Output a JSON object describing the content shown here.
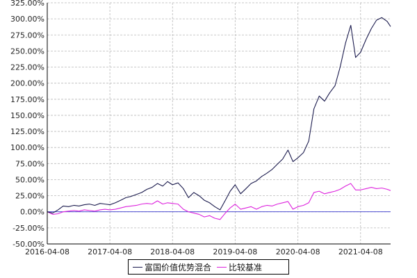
{
  "chart_data": {
    "type": "line",
    "title": "",
    "xlabel": "",
    "ylabel": "",
    "x_ticks": [
      "2016-04-08",
      "2017-04-08",
      "2018-04-08",
      "2019-04-08",
      "2020-04-08",
      "2021-04-08"
    ],
    "y_ticks": [
      "-50.00%",
      "-25.00%",
      "0.00%",
      "25.00%",
      "50.00%",
      "75.00%",
      "100.00%",
      "125.00%",
      "150.00%",
      "175.00%",
      "200.00%",
      "225.00%",
      "250.00%",
      "275.00%",
      "300.00%",
      "325.00%"
    ],
    "ylim": [
      -50,
      325
    ],
    "xlim": [
      "2016-04-08",
      "2021-09-30"
    ],
    "grid": true,
    "legend_position": "bottom-center",
    "zero_line_color": "#3333cc",
    "series": [
      {
        "name": "富国价值优势混合",
        "color": "#1a1a4d",
        "points": [
          [
            "2016-04-08",
            0
          ],
          [
            "2016-05-10",
            -2
          ],
          [
            "2016-06-10",
            3
          ],
          [
            "2016-07-10",
            9
          ],
          [
            "2016-08-10",
            8
          ],
          [
            "2016-09-10",
            10
          ],
          [
            "2016-10-10",
            9
          ],
          [
            "2016-11-10",
            11
          ],
          [
            "2016-12-10",
            12
          ],
          [
            "2017-01-10",
            10
          ],
          [
            "2017-02-10",
            13
          ],
          [
            "2017-03-10",
            12
          ],
          [
            "2017-04-08",
            11
          ],
          [
            "2017-05-10",
            14
          ],
          [
            "2017-06-10",
            18
          ],
          [
            "2017-07-10",
            22
          ],
          [
            "2017-08-10",
            24
          ],
          [
            "2017-09-10",
            27
          ],
          [
            "2017-10-10",
            30
          ],
          [
            "2017-11-10",
            35
          ],
          [
            "2017-12-10",
            38
          ],
          [
            "2018-01-10",
            44
          ],
          [
            "2018-02-10",
            40
          ],
          [
            "2018-03-10",
            47
          ],
          [
            "2018-04-08",
            42
          ],
          [
            "2018-05-10",
            45
          ],
          [
            "2018-06-10",
            36
          ],
          [
            "2018-07-10",
            22
          ],
          [
            "2018-08-10",
            30
          ],
          [
            "2018-09-10",
            25
          ],
          [
            "2018-10-10",
            18
          ],
          [
            "2018-11-10",
            14
          ],
          [
            "2018-12-10",
            8
          ],
          [
            "2019-01-10",
            3
          ],
          [
            "2019-02-10",
            18
          ],
          [
            "2019-03-10",
            32
          ],
          [
            "2019-04-08",
            42
          ],
          [
            "2019-05-10",
            28
          ],
          [
            "2019-06-10",
            36
          ],
          [
            "2019-07-10",
            44
          ],
          [
            "2019-08-10",
            48
          ],
          [
            "2019-09-10",
            55
          ],
          [
            "2019-10-10",
            60
          ],
          [
            "2019-11-10",
            66
          ],
          [
            "2019-12-10",
            74
          ],
          [
            "2020-01-10",
            82
          ],
          [
            "2020-02-10",
            96
          ],
          [
            "2020-03-10",
            78
          ],
          [
            "2020-04-08",
            84
          ],
          [
            "2020-05-10",
            92
          ],
          [
            "2020-06-10",
            110
          ],
          [
            "2020-07-10",
            160
          ],
          [
            "2020-08-10",
            180
          ],
          [
            "2020-09-10",
            172
          ],
          [
            "2020-10-10",
            185
          ],
          [
            "2020-11-10",
            196
          ],
          [
            "2020-12-10",
            225
          ],
          [
            "2021-01-10",
            262
          ],
          [
            "2021-02-10",
            290
          ],
          [
            "2021-03-10",
            240
          ],
          [
            "2021-04-08",
            248
          ],
          [
            "2021-05-10",
            268
          ],
          [
            "2021-06-10",
            285
          ],
          [
            "2021-07-10",
            298
          ],
          [
            "2021-08-10",
            302
          ],
          [
            "2021-09-10",
            296
          ],
          [
            "2021-09-30",
            288
          ]
        ]
      },
      {
        "name": "比较基准",
        "color": "#dd22dd",
        "points": [
          [
            "2016-04-08",
            0
          ],
          [
            "2016-05-10",
            -4
          ],
          [
            "2016-06-10",
            -3
          ],
          [
            "2016-07-10",
            0
          ],
          [
            "2016-08-10",
            1
          ],
          [
            "2016-09-10",
            2
          ],
          [
            "2016-10-10",
            1
          ],
          [
            "2016-11-10",
            3
          ],
          [
            "2016-12-10",
            2
          ],
          [
            "2017-01-10",
            1
          ],
          [
            "2017-02-10",
            3
          ],
          [
            "2017-03-10",
            4
          ],
          [
            "2017-04-08",
            3
          ],
          [
            "2017-05-10",
            4
          ],
          [
            "2017-06-10",
            6
          ],
          [
            "2017-07-10",
            8
          ],
          [
            "2017-08-10",
            9
          ],
          [
            "2017-09-10",
            10
          ],
          [
            "2017-10-10",
            12
          ],
          [
            "2017-11-10",
            13
          ],
          [
            "2017-12-10",
            12
          ],
          [
            "2018-01-10",
            17
          ],
          [
            "2018-02-10",
            12
          ],
          [
            "2018-03-10",
            14
          ],
          [
            "2018-04-08",
            13
          ],
          [
            "2018-05-10",
            12
          ],
          [
            "2018-06-10",
            4
          ],
          [
            "2018-07-10",
            0
          ],
          [
            "2018-08-10",
            -2
          ],
          [
            "2018-09-10",
            -4
          ],
          [
            "2018-10-10",
            -8
          ],
          [
            "2018-11-10",
            -6
          ],
          [
            "2018-12-10",
            -10
          ],
          [
            "2019-01-10",
            -12
          ],
          [
            "2019-02-10",
            -2
          ],
          [
            "2019-03-10",
            6
          ],
          [
            "2019-04-08",
            12
          ],
          [
            "2019-05-10",
            4
          ],
          [
            "2019-06-10",
            6
          ],
          [
            "2019-07-10",
            8
          ],
          [
            "2019-08-10",
            4
          ],
          [
            "2019-09-10",
            8
          ],
          [
            "2019-10-10",
            10
          ],
          [
            "2019-11-10",
            9
          ],
          [
            "2019-12-10",
            12
          ],
          [
            "2020-01-10",
            14
          ],
          [
            "2020-02-10",
            16
          ],
          [
            "2020-03-10",
            4
          ],
          [
            "2020-04-08",
            8
          ],
          [
            "2020-05-10",
            10
          ],
          [
            "2020-06-10",
            14
          ],
          [
            "2020-07-10",
            30
          ],
          [
            "2020-08-10",
            32
          ],
          [
            "2020-09-10",
            28
          ],
          [
            "2020-10-10",
            30
          ],
          [
            "2020-11-10",
            32
          ],
          [
            "2020-12-10",
            35
          ],
          [
            "2021-01-10",
            40
          ],
          [
            "2021-02-10",
            44
          ],
          [
            "2021-03-10",
            34
          ],
          [
            "2021-04-08",
            34
          ],
          [
            "2021-05-10",
            36
          ],
          [
            "2021-06-10",
            38
          ],
          [
            "2021-07-10",
            36
          ],
          [
            "2021-08-10",
            37
          ],
          [
            "2021-09-10",
            35
          ],
          [
            "2021-09-30",
            33
          ]
        ]
      }
    ]
  },
  "legend": {
    "items": [
      {
        "label": "富国价值优势混合",
        "color": "#1a1a4d"
      },
      {
        "label": "比较基准",
        "color": "#dd22dd"
      }
    ]
  }
}
